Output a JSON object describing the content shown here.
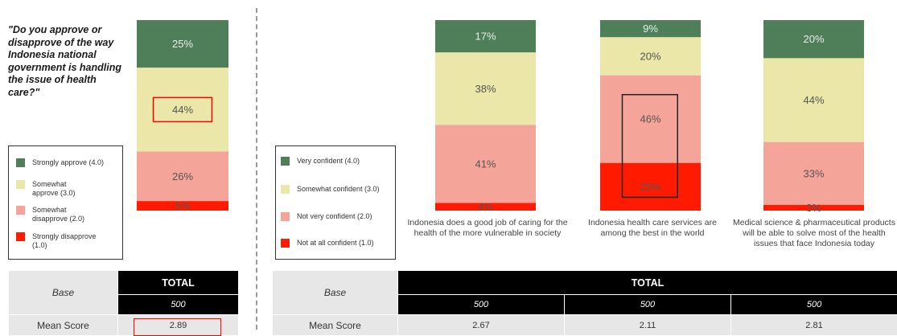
{
  "left_panel": {
    "question": "\"Do you approve or disapprove of the way Indonesia national government is handling the issue of health care?\"",
    "legend": [
      {
        "label": "Strongly approve (4.0)",
        "color": "#4e7f59"
      },
      {
        "label": "Somewhat approve (3.0)",
        "color": "#eae7a8"
      },
      {
        "label": "Somewhat disapprove (2.0)",
        "color": "#f5a49a"
      },
      {
        "label": "Strongly disapprove (1.0)",
        "color": "#ff1a00"
      }
    ],
    "table": {
      "base_label": "Base",
      "total_label": "TOTAL",
      "base_n": "500",
      "mean_label": "Mean Score",
      "mean_value": "2.89"
    }
  },
  "right_panel": {
    "legend": [
      {
        "label": "Very confident (4.0)",
        "color": "#4e7f59"
      },
      {
        "label": "Somewhat confident (3.0)",
        "color": "#eae7a8"
      },
      {
        "label": "Not very confident (2.0)",
        "color": "#f5a49a"
      },
      {
        "label": "Not at all confident (1.0)",
        "color": "#ff1a00"
      }
    ],
    "table": {
      "base_label": "Base",
      "total_label": "TOTAL",
      "base_n": [
        "500",
        "500",
        "500"
      ],
      "mean_label": "Mean Score",
      "mean_values": [
        "2.67",
        "2.11",
        "2.81"
      ]
    }
  },
  "chart_data": [
    {
      "type": "bar",
      "stacked": true,
      "title": "\"Do you approve or disapprove of the way Indonesia national government is handling the issue of health care?\"",
      "categories": [
        "TOTAL"
      ],
      "series": [
        {
          "name": "Strongly approve (4.0)",
          "values": [
            25
          ],
          "color": "#4e7f59"
        },
        {
          "name": "Somewhat approve (3.0)",
          "values": [
            44
          ],
          "color": "#eae7a8"
        },
        {
          "name": "Somewhat disapprove (2.0)",
          "values": [
            26
          ],
          "color": "#f5a49a"
        },
        {
          "name": "Strongly disapprove (1.0)",
          "values": [
            5
          ],
          "color": "#ff1a00"
        }
      ],
      "value_suffix": "%",
      "ylim": [
        0,
        100
      ],
      "highlight": {
        "series": 1,
        "category": 0,
        "color": "#ff0000"
      }
    },
    {
      "type": "bar",
      "stacked": true,
      "categories": [
        "Indonesia does a good job of caring for the health of the more vulnerable in society",
        "Indonesia health care services are among the best in the world",
        "Medical science & pharmaceutical products will be able to solve most of the health issues that face Indonesia today"
      ],
      "series": [
        {
          "name": "Very confident (4.0)",
          "values": [
            17,
            9,
            20
          ],
          "color": "#4e7f59"
        },
        {
          "name": "Somewhat confident (3.0)",
          "values": [
            38,
            20,
            44
          ],
          "color": "#eae7a8"
        },
        {
          "name": "Not very confident (2.0)",
          "values": [
            41,
            46,
            33
          ],
          "color": "#f5a49a"
        },
        {
          "name": "Not at all confident (1.0)",
          "values": [
            4,
            25,
            3
          ],
          "color": "#ff1a00"
        }
      ],
      "value_suffix": "%",
      "ylim": [
        0,
        100
      ],
      "highlight": {
        "series": [
          2,
          3
        ],
        "category": 1,
        "color": "#222222"
      }
    }
  ]
}
